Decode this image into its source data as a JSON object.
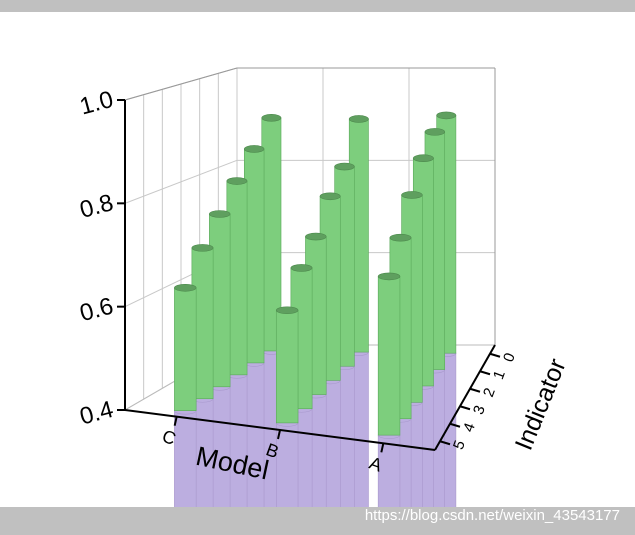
{
  "chart_data": {
    "type": "bar3d",
    "x_label": "Model",
    "y_label": "Indicator",
    "categories": [
      "C",
      "B",
      "A"
    ],
    "indicators": [
      0,
      1,
      2,
      3,
      4,
      5
    ],
    "values": [
      [
        0.9,
        0.85,
        0.8,
        0.75,
        0.7,
        0.64
      ],
      [
        0.9,
        0.82,
        0.78,
        0.72,
        0.68,
        0.62
      ],
      [
        0.91,
        0.9,
        0.87,
        0.82,
        0.76,
        0.71
      ]
    ],
    "color": "#7dce7d",
    "floor_color": "#bcaee0",
    "zlim": [
      0.4,
      1.0
    ],
    "zticks": [
      {
        "value": 0.4,
        "label": "0.4"
      },
      {
        "value": 0.6,
        "label": "0.6"
      },
      {
        "value": 0.8,
        "label": "0.8"
      },
      {
        "value": 1.0,
        "label": "1.0"
      }
    ],
    "grid": true
  },
  "watermark": "https://blog.csdn.net/weixin_43543177"
}
